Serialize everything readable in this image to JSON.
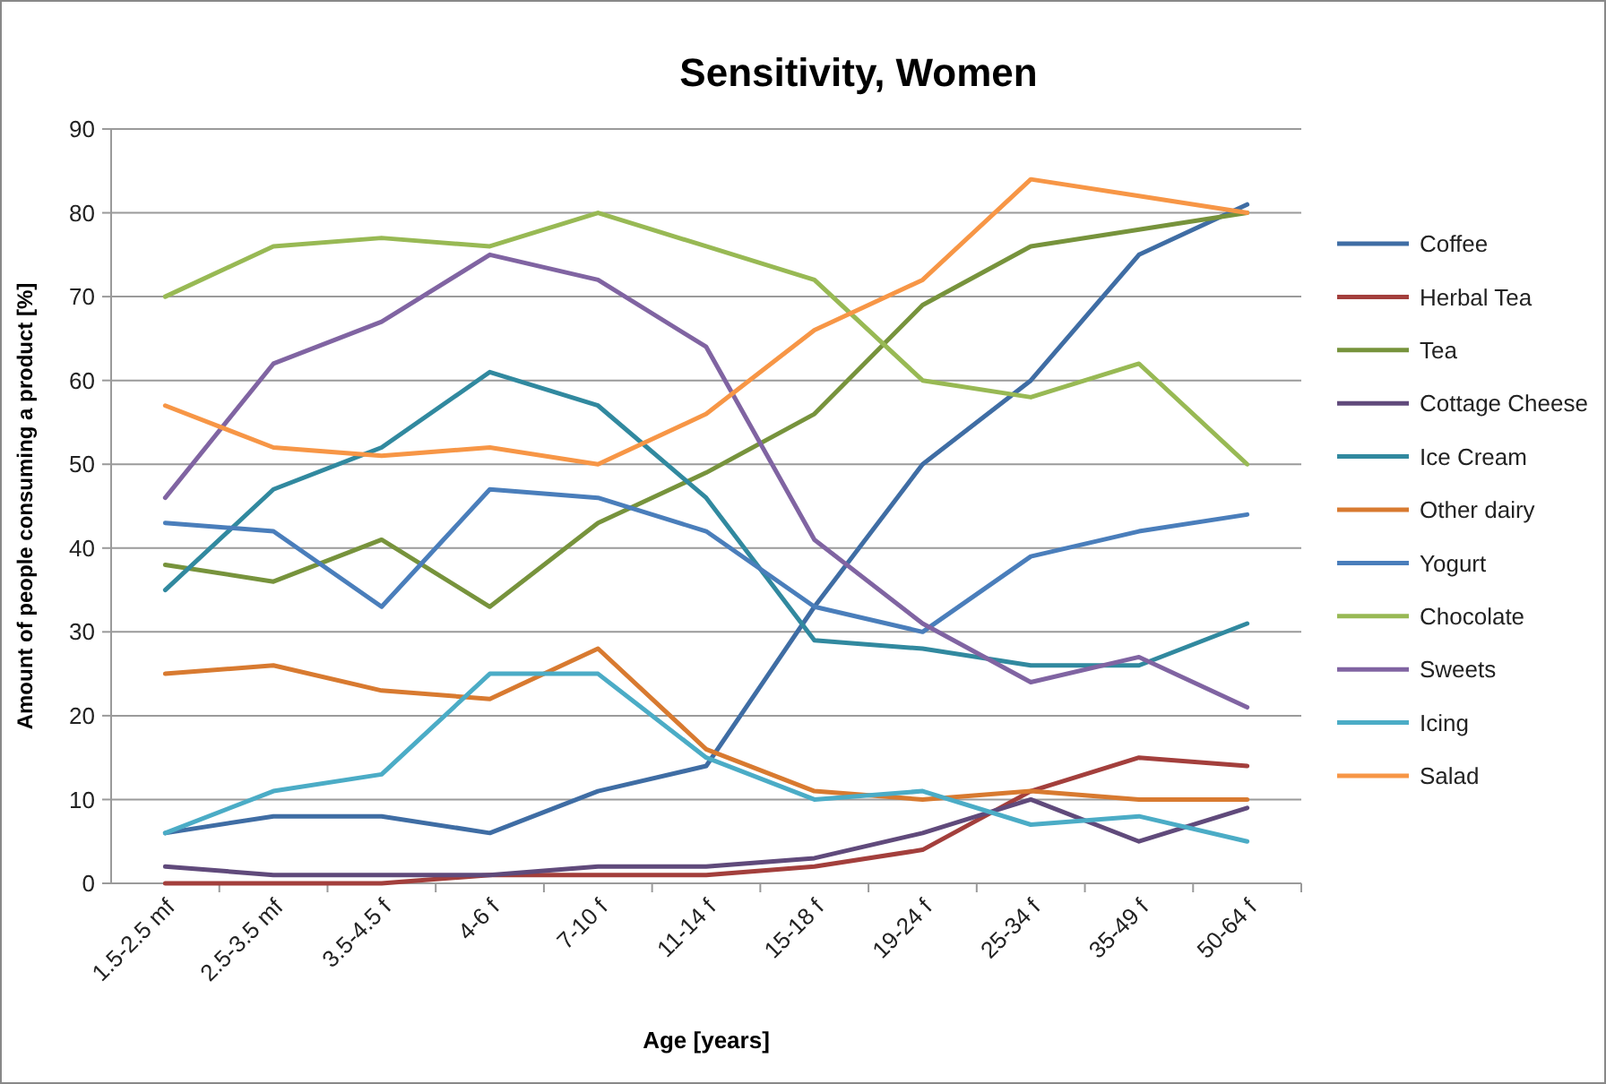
{
  "chart_data": {
    "type": "line",
    "title": "Sensitivity, Women",
    "xlabel": "Age [years]",
    "ylabel": "Amount of people consuming a product [%]",
    "categories": [
      "1.5-2.5 mf",
      "2.5-3.5 mf",
      "3.5-4.5 f",
      "4-6 f",
      "7-10 f",
      "11-14 f",
      "15-18 f",
      "19-24 f",
      "25-34 f",
      "35-49 f",
      "50-64 f"
    ],
    "series": [
      {
        "name": "Coffee",
        "color": "#3f6da4",
        "values": [
          6,
          8,
          8,
          6,
          11,
          14,
          33,
          50,
          60,
          75,
          81
        ]
      },
      {
        "name": "Herbal Tea",
        "color": "#a33f3c",
        "values": [
          0,
          0,
          0,
          1,
          1,
          1,
          2,
          4,
          11,
          15,
          14
        ]
      },
      {
        "name": "Tea",
        "color": "#77933c",
        "values": [
          38,
          36,
          41,
          33,
          43,
          49,
          56,
          69,
          76,
          78,
          80
        ]
      },
      {
        "name": "Cottage Cheese",
        "color": "#604a7b",
        "values": [
          2,
          1,
          1,
          1,
          2,
          2,
          3,
          6,
          10,
          5,
          9
        ]
      },
      {
        "name": "Ice Cream",
        "color": "#31899f",
        "values": [
          35,
          47,
          52,
          61,
          57,
          46,
          29,
          28,
          26,
          26,
          31
        ]
      },
      {
        "name": "Other dairy",
        "color": "#d87a30",
        "values": [
          25,
          26,
          23,
          22,
          28,
          16,
          11,
          10,
          11,
          10,
          10
        ]
      },
      {
        "name": "Yogurt",
        "color": "#4a7ebb",
        "values": [
          43,
          42,
          33,
          47,
          46,
          42,
          33,
          30,
          39,
          42,
          44
        ]
      },
      {
        "name": "Chocolate",
        "color": "#98b954",
        "values": [
          70,
          76,
          77,
          76,
          80,
          76,
          72,
          60,
          58,
          62,
          50
        ]
      },
      {
        "name": "Sweets",
        "color": "#8064a2",
        "values": [
          46,
          62,
          67,
          75,
          72,
          64,
          41,
          31,
          24,
          27,
          21
        ]
      },
      {
        "name": "Icing",
        "color": "#4bacc6",
        "values": [
          6,
          11,
          13,
          25,
          25,
          15,
          10,
          11,
          7,
          8,
          5
        ]
      },
      {
        "name": "Salad",
        "color": "#f79646",
        "values": [
          57,
          52,
          51,
          52,
          50,
          56,
          66,
          72,
          84,
          82,
          80
        ]
      }
    ],
    "ylim": [
      0,
      90
    ],
    "yticks": [
      0,
      10,
      20,
      30,
      40,
      50,
      60,
      70,
      80,
      90
    ],
    "grid": "y",
    "legend": "right",
    "marker": "none"
  }
}
